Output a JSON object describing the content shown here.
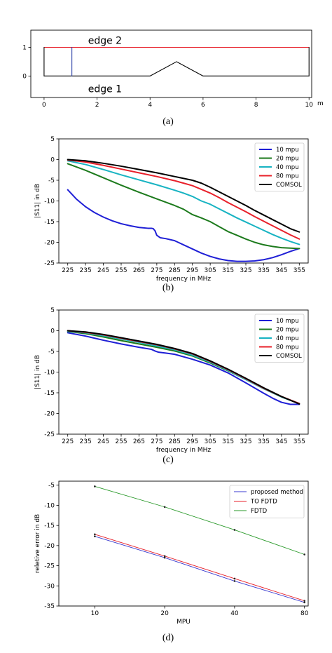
{
  "chart_data": [
    {
      "id": "a",
      "type": "line",
      "caption": "(a)",
      "xunit": "m",
      "xlim": [
        -0.5,
        10.1
      ],
      "ylim": [
        -0.75,
        1.6
      ],
      "xticks": [
        0,
        2,
        4,
        6,
        8,
        10
      ],
      "yticks": [
        0,
        1
      ],
      "annotations": [
        {
          "text": "edge 2",
          "x": 2.3,
          "y": 1.25
        },
        {
          "text": "edge 1",
          "x": 2.3,
          "y": -0.45
        }
      ],
      "series": [
        {
          "color": "#e8202a",
          "points": [
            [
              0,
              1
            ],
            [
              10,
              1
            ]
          ]
        },
        {
          "color": "#000000",
          "points": [
            [
              0,
              0
            ],
            [
              4,
              0
            ],
            [
              5,
              0.5
            ],
            [
              6,
              0
            ],
            [
              10,
              0
            ]
          ]
        },
        {
          "color": "#000000",
          "points": [
            [
              0,
              0
            ],
            [
              0,
              1
            ]
          ]
        },
        {
          "color": "#000000",
          "points": [
            [
              10,
              0
            ],
            [
              10,
              1
            ]
          ]
        },
        {
          "color": "#2b3fa6",
          "points": [
            [
              1.05,
              0
            ],
            [
              1.05,
              1
            ]
          ]
        }
      ]
    },
    {
      "id": "b",
      "type": "line",
      "caption": "(b)",
      "xlabel": "frequency in MHz",
      "ylabel": "|S11| in dB",
      "xlim": [
        220,
        360
      ],
      "ylim": [
        -25,
        5
      ],
      "xticks": [
        225,
        235,
        245,
        255,
        265,
        275,
        285,
        295,
        305,
        315,
        325,
        335,
        345,
        355
      ],
      "yticks": [
        5,
        0,
        -5,
        -10,
        -15,
        -20,
        -25
      ],
      "legend_position": "top-right",
      "series": [
        {
          "name": "10 mpu",
          "color": "#1f1fd6",
          "x": [
            225,
            230,
            235,
            240,
            245,
            250,
            255,
            260,
            265,
            270,
            272,
            273,
            274,
            275,
            277,
            280,
            285,
            290,
            295,
            300,
            305,
            310,
            315,
            320,
            325,
            330,
            335,
            340,
            345,
            350,
            355
          ],
          "values": [
            -7.3,
            -9.6,
            -11.4,
            -12.8,
            -13.9,
            -14.8,
            -15.5,
            -16.0,
            -16.4,
            -16.6,
            -16.6,
            -16.7,
            -17.2,
            -18.3,
            -18.9,
            -19.1,
            -19.6,
            -20.6,
            -21.6,
            -22.6,
            -23.4,
            -24.0,
            -24.4,
            -24.6,
            -24.6,
            -24.5,
            -24.2,
            -23.7,
            -23.0,
            -22.2,
            -21.5
          ]
        },
        {
          "name": "20 mpu",
          "color": "#1c7a1c",
          "x": [
            225,
            235,
            245,
            255,
            265,
            275,
            285,
            290,
            295,
            300,
            305,
            310,
            315,
            320,
            325,
            330,
            335,
            340,
            345,
            350,
            355
          ],
          "values": [
            -1.0,
            -2.6,
            -4.4,
            -6.2,
            -7.9,
            -9.5,
            -11.1,
            -12.0,
            -13.3,
            -14.1,
            -15.0,
            -16.2,
            -17.4,
            -18.3,
            -19.2,
            -20.0,
            -20.6,
            -21.0,
            -21.3,
            -21.4,
            -21.5
          ]
        },
        {
          "name": "40 mpu",
          "color": "#17b3c2",
          "x": [
            225,
            235,
            245,
            255,
            265,
            275,
            285,
            290,
            295,
            300,
            305,
            310,
            315,
            320,
            325,
            330,
            335,
            340,
            345,
            350,
            355
          ],
          "values": [
            -0.3,
            -1.2,
            -2.4,
            -3.7,
            -4.9,
            -6.1,
            -7.4,
            -8.1,
            -8.9,
            -10.0,
            -10.8,
            -11.9,
            -13.0,
            -14.1,
            -15.1,
            -16.1,
            -17.1,
            -18.1,
            -19.0,
            -19.8,
            -20.5
          ]
        },
        {
          "name": "80 mpu",
          "color": "#e8202a",
          "x": [
            225,
            235,
            245,
            255,
            265,
            275,
            285,
            290,
            295,
            300,
            305,
            310,
            315,
            320,
            325,
            330,
            335,
            340,
            345,
            350,
            355
          ],
          "values": [
            -0.1,
            -0.6,
            -1.4,
            -2.3,
            -3.2,
            -4.1,
            -5.1,
            -5.7,
            -6.3,
            -7.2,
            -8.1,
            -9.2,
            -10.4,
            -11.5,
            -12.6,
            -13.8,
            -14.9,
            -16.0,
            -17.1,
            -18.2,
            -19.2
          ]
        },
        {
          "name": "COMSOL",
          "color": "#000000",
          "x": [
            225,
            235,
            245,
            255,
            265,
            275,
            285,
            295,
            300,
            305,
            310,
            315,
            320,
            325,
            330,
            335,
            340,
            345,
            350,
            355
          ],
          "values": [
            0.0,
            -0.3,
            -0.9,
            -1.6,
            -2.4,
            -3.2,
            -4.1,
            -5.0,
            -5.7,
            -6.7,
            -7.8,
            -8.9,
            -10.0,
            -11.1,
            -12.3,
            -13.4,
            -14.5,
            -15.6,
            -16.7,
            -17.5
          ]
        }
      ]
    },
    {
      "id": "c",
      "type": "line",
      "caption": "(c)",
      "xlabel": "frequency in MHz",
      "ylabel": "|S11| in dB",
      "xlim": [
        220,
        360
      ],
      "ylim": [
        -25,
        5
      ],
      "xticks": [
        225,
        235,
        245,
        255,
        265,
        275,
        285,
        295,
        305,
        315,
        325,
        335,
        345,
        355
      ],
      "yticks": [
        5,
        0,
        -5,
        -10,
        -15,
        -20,
        -25
      ],
      "legend_position": "top-right",
      "series": [
        {
          "name": "10 mpu",
          "color": "#1f1fd6",
          "x": [
            225,
            235,
            245,
            255,
            265,
            272,
            274,
            276,
            280,
            285,
            295,
            305,
            315,
            325,
            335,
            340,
            345,
            350,
            355
          ],
          "values": [
            -0.5,
            -1.3,
            -2.3,
            -3.2,
            -4.0,
            -4.5,
            -4.9,
            -5.2,
            -5.4,
            -5.7,
            -6.9,
            -8.3,
            -10.2,
            -12.6,
            -15.1,
            -16.3,
            -17.3,
            -17.8,
            -17.8
          ]
        },
        {
          "name": "20 mpu",
          "color": "#1c7a1c",
          "x": [
            225,
            235,
            245,
            255,
            265,
            275,
            285,
            295,
            305,
            315,
            325,
            335,
            345,
            355
          ],
          "values": [
            -0.2,
            -0.7,
            -1.5,
            -2.4,
            -3.2,
            -4.0,
            -4.9,
            -6.1,
            -7.8,
            -9.7,
            -11.8,
            -14.0,
            -16.0,
            -17.6
          ]
        },
        {
          "name": "40 mpu",
          "color": "#17b3c2",
          "x": [
            225,
            235,
            245,
            255,
            265,
            275,
            285,
            295,
            305,
            315,
            325,
            335,
            345,
            355
          ],
          "values": [
            -0.1,
            -0.5,
            -1.2,
            -2.0,
            -2.8,
            -3.7,
            -4.6,
            -5.9,
            -7.6,
            -9.6,
            -11.8,
            -14.0,
            -16.0,
            -17.6
          ]
        },
        {
          "name": "80 mpu",
          "color": "#e8202a",
          "x": [
            225,
            235,
            245,
            255,
            265,
            275,
            285,
            295,
            305,
            315,
            325,
            335,
            345,
            355
          ],
          "values": [
            0.0,
            -0.4,
            -1.0,
            -1.8,
            -2.6,
            -3.4,
            -4.4,
            -5.6,
            -7.4,
            -9.4,
            -11.6,
            -13.9,
            -15.9,
            -17.6
          ]
        },
        {
          "name": "COMSOL",
          "color": "#000000",
          "x": [
            225,
            235,
            245,
            255,
            265,
            275,
            285,
            295,
            305,
            315,
            325,
            335,
            345,
            355
          ],
          "values": [
            0.0,
            -0.3,
            -0.9,
            -1.7,
            -2.5,
            -3.3,
            -4.3,
            -5.5,
            -7.3,
            -9.3,
            -11.5,
            -13.8,
            -15.9,
            -17.7
          ]
        }
      ]
    },
    {
      "id": "d",
      "type": "line",
      "caption": "(d)",
      "xlabel": "MPU",
      "ylabel": "reletive error in dB",
      "xlim": [
        7,
        83
      ],
      "ylim": [
        -35,
        -4
      ],
      "xticks": [
        10,
        20,
        40,
        80
      ],
      "xscale": "log2",
      "yticks": [
        -5,
        -10,
        -15,
        -20,
        -25,
        -30,
        -35
      ],
      "legend_position": "top-right",
      "series": [
        {
          "name": "proposed method",
          "color": "#3b3bd0",
          "x": [
            10,
            20,
            40,
            80
          ],
          "values": [
            -17.7,
            -23.0,
            -28.8,
            -34.1
          ]
        },
        {
          "name": "TO FDTD",
          "color": "#e8202a",
          "x": [
            10,
            20,
            40,
            80
          ],
          "values": [
            -17.2,
            -22.6,
            -28.2,
            -33.7
          ]
        },
        {
          "name": "FDTD",
          "color": "#2a9a2a",
          "x": [
            10,
            20,
            40,
            80
          ],
          "values": [
            -5.3,
            -10.4,
            -16.1,
            -22.2
          ]
        }
      ]
    }
  ]
}
